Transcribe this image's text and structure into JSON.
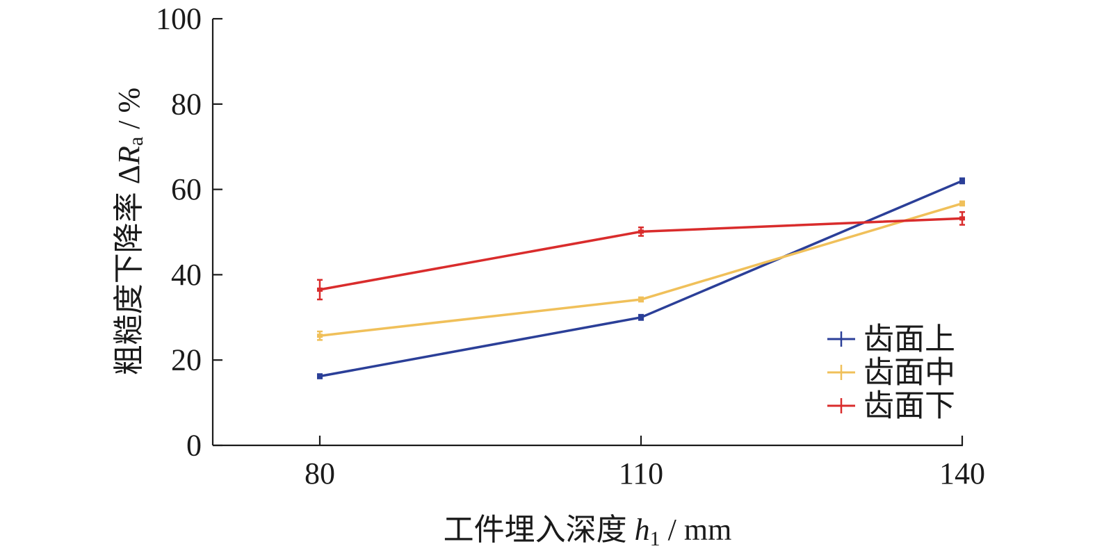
{
  "chart_data": {
    "type": "line",
    "title": "",
    "xlabel": "工件埋入深度 h1 / mm",
    "ylabel": "粗糙度下降率 ΔRa / %",
    "xlabel_parts": {
      "main": "工件埋入深度 ",
      "var": "h",
      "sub": "1",
      "unit": " / mm"
    },
    "ylabel_parts": {
      "main": "粗糙度下降率 ",
      "delta": "Δ",
      "var": "R",
      "sub": "a",
      "unit": " / %"
    },
    "categories": [
      "80",
      "110",
      "140"
    ],
    "x": [
      80,
      110,
      140
    ],
    "ylim": [
      0,
      100
    ],
    "yticks": [
      0,
      20,
      40,
      60,
      80,
      100
    ],
    "legend_position": "bottom-right",
    "grid": false,
    "series": [
      {
        "name": "齿面上",
        "color": "#2b3f98",
        "values": [
          16.2,
          30.0,
          62.0
        ],
        "errors": [
          0.5,
          0.6,
          0.6
        ]
      },
      {
        "name": "齿面中",
        "color": "#f0c05a",
        "values": [
          25.7,
          34.2,
          56.7
        ],
        "errors": [
          1.0,
          0.5,
          0.5
        ]
      },
      {
        "name": "齿面下",
        "color": "#d92c2c",
        "values": [
          36.5,
          50.1,
          53.2
        ],
        "errors": [
          2.3,
          1.0,
          1.5
        ]
      }
    ]
  }
}
